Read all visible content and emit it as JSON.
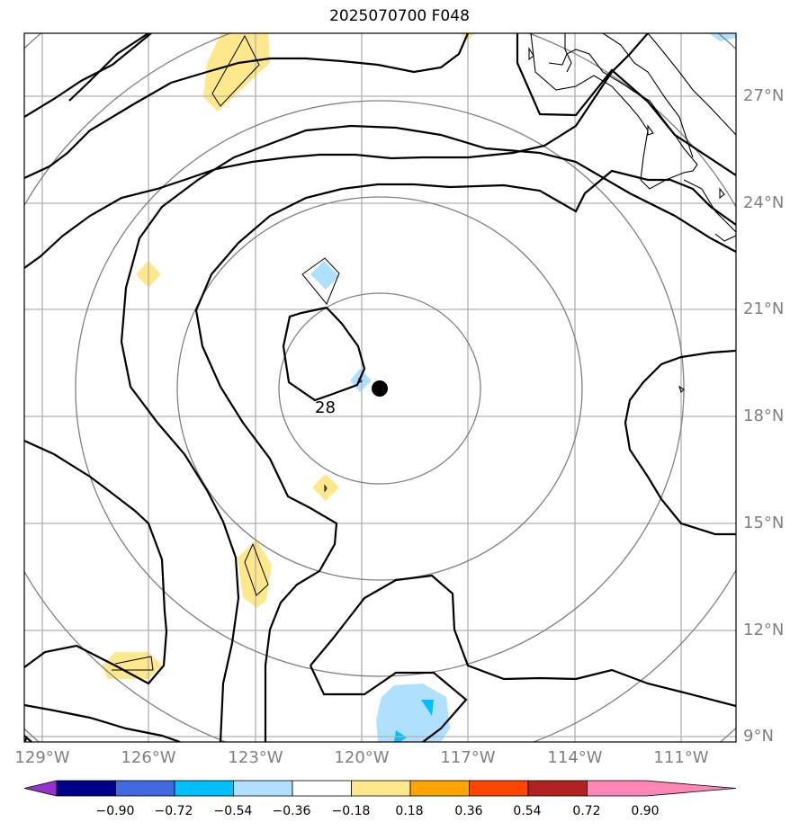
{
  "title": "2025070700 F048",
  "contour_label": "28",
  "lat_labels": [
    "27°N",
    "24°N",
    "21°N",
    "18°N",
    "15°N",
    "12°N",
    "9°N"
  ],
  "lon_labels": [
    "129°W",
    "126°W",
    "123°W",
    "120°W",
    "117°W",
    "114°W",
    "111°W"
  ],
  "colorbar": {
    "ticks": [
      "−0.90",
      "−0.72",
      "−0.54",
      "−0.36",
      "−0.18",
      "0.18",
      "0.36",
      "0.54",
      "0.72",
      "0.90"
    ],
    "colors": [
      "#9932cc",
      "#00008b",
      "#4169e1",
      "#00bfff",
      "#b0e0ff",
      "#ffffff",
      "#ffe88c",
      "#ffa500",
      "#ff4500",
      "#b22222",
      "#ff85b4"
    ]
  },
  "colors": {
    "contour_black": "#000000",
    "range_ring_gray": "#808080",
    "grid_gray": "#b0b0b0",
    "positive_fill": "#ffe88c",
    "negative_fill": "#b0e0ff",
    "negative_fill_strong": "#00bfff"
  }
}
